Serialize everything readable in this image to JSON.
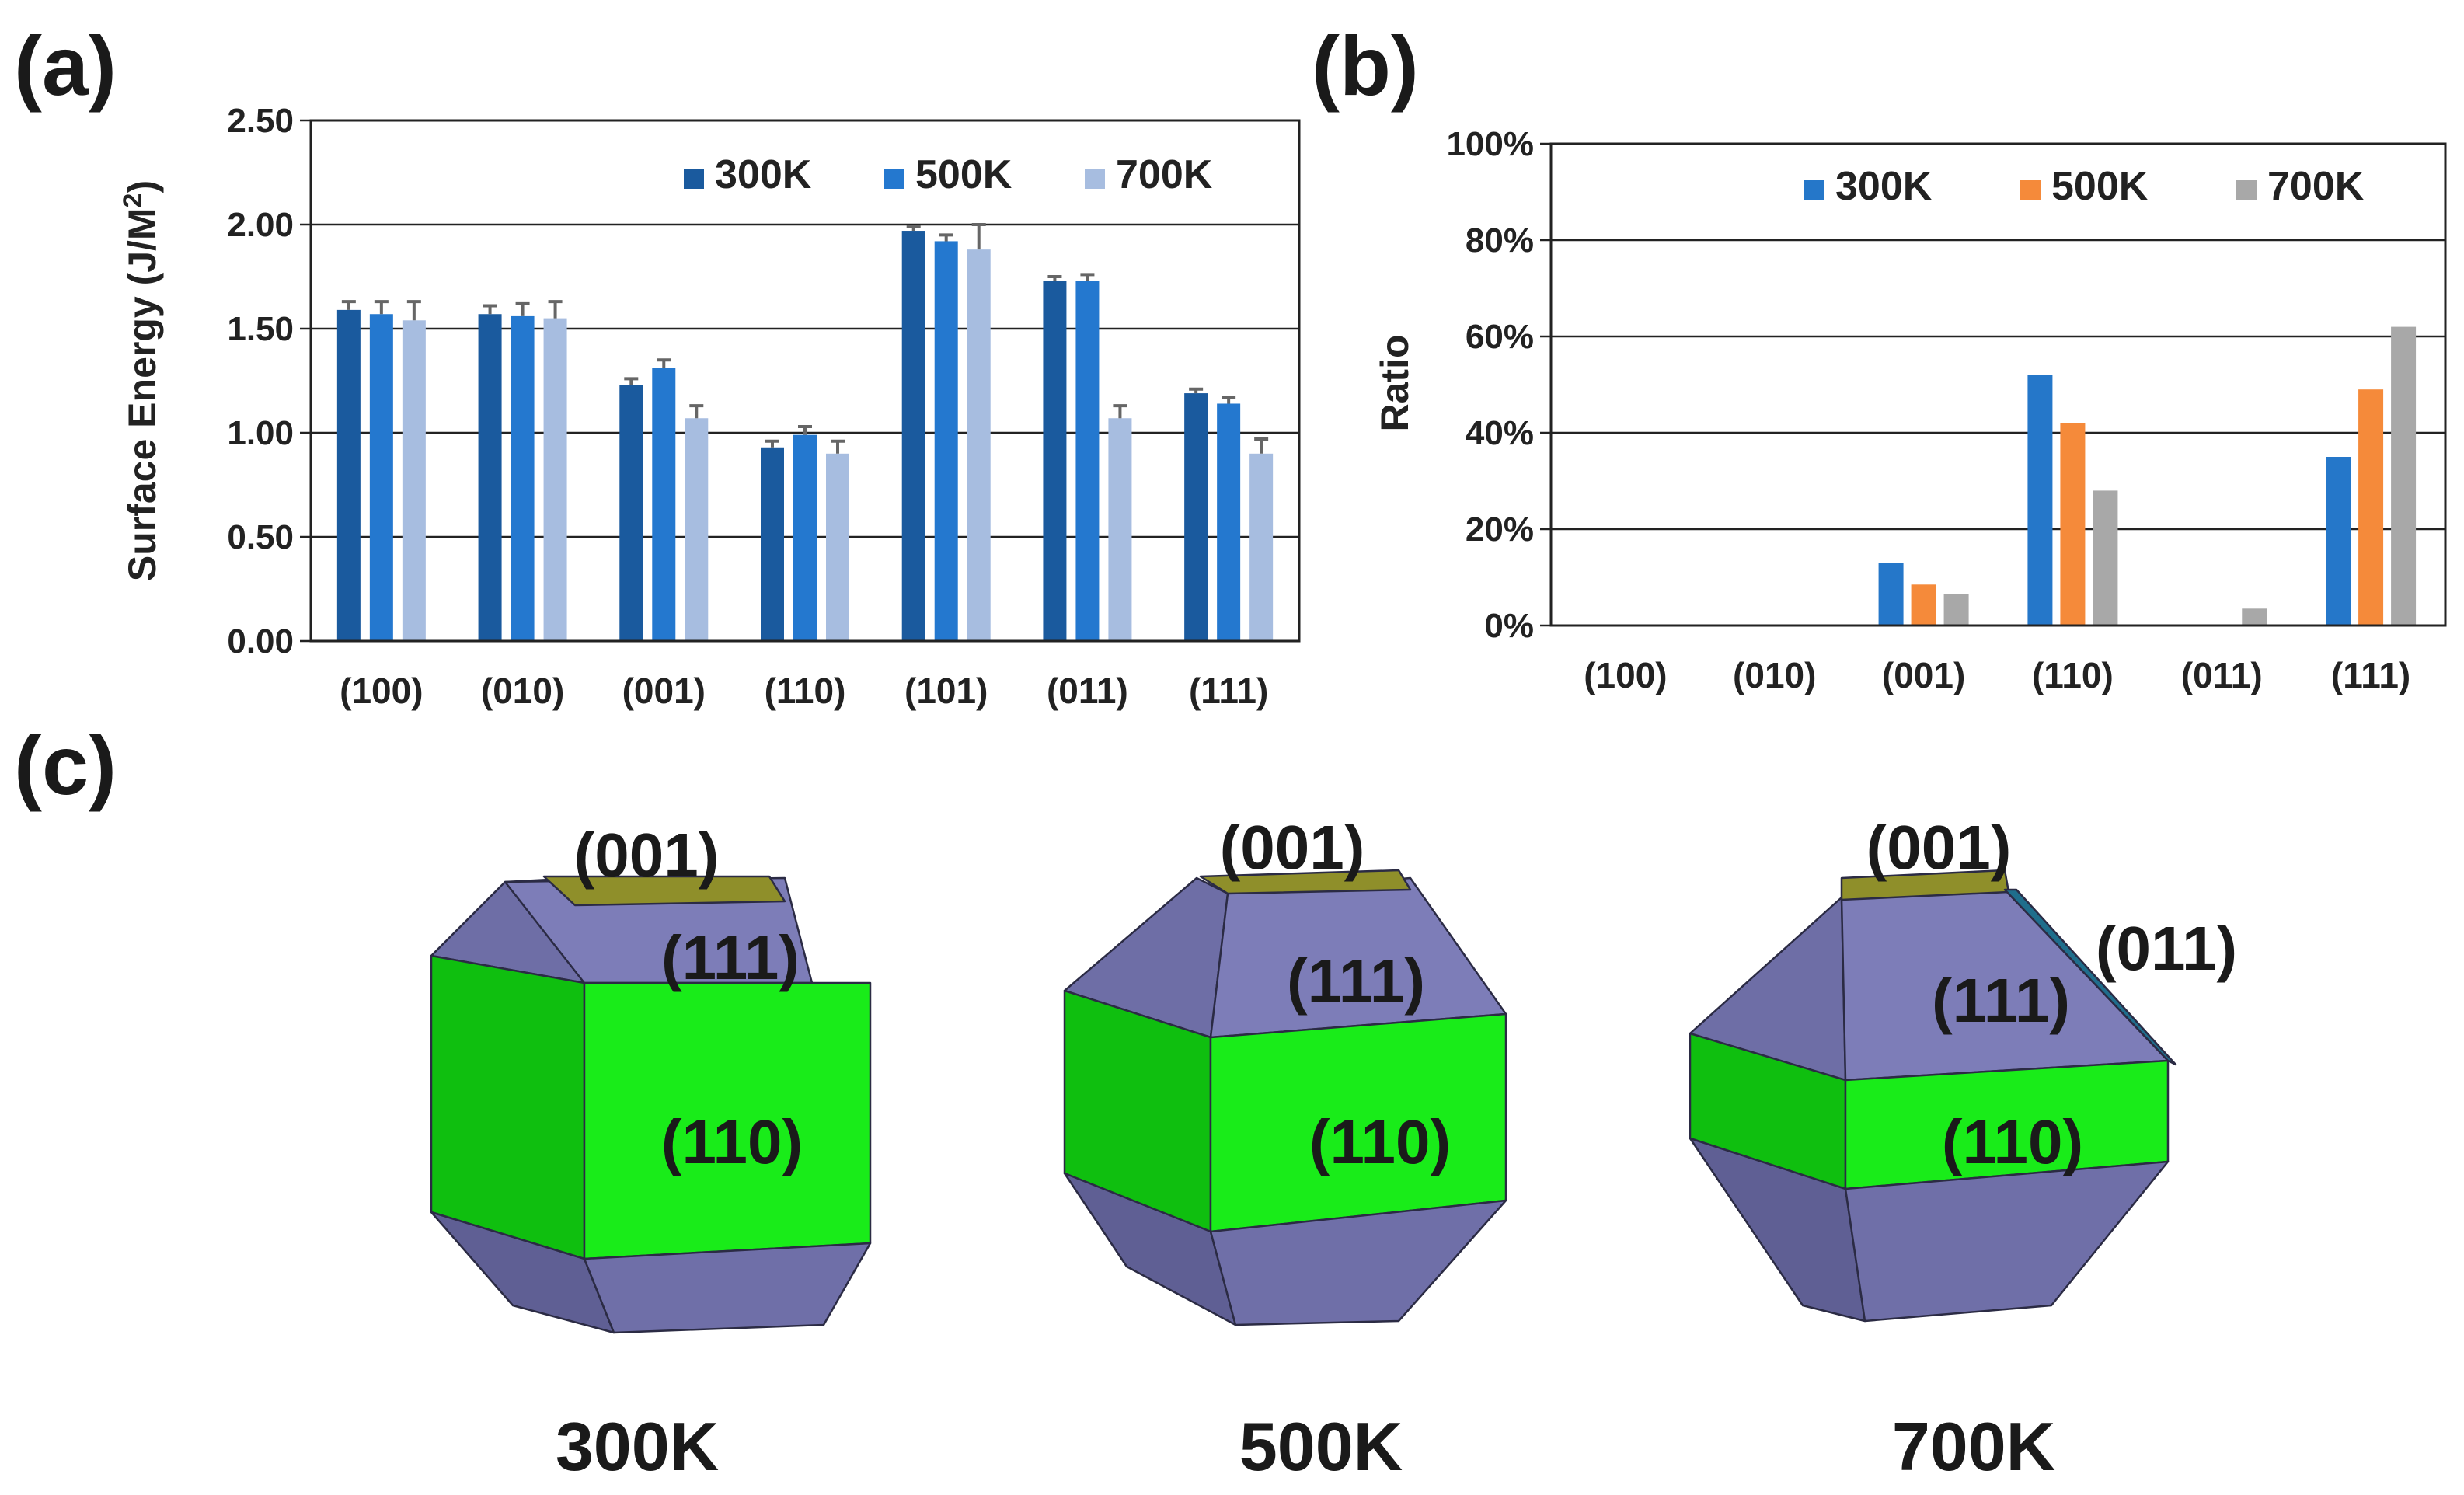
{
  "panel_labels": {
    "a": "(a)",
    "b": "(b)",
    "c": "(c)"
  },
  "chart_data": [
    {
      "type": "bar",
      "panel": "(a)",
      "title": "",
      "xlabel": "",
      "ylabel": "Surface Energy (J/M",
      "ylabel_sup": "2",
      "ylabel_close": ")",
      "ylim": [
        0,
        2.5
      ],
      "yticks": [
        "0.00",
        "0.50",
        "1.00",
        "1.50",
        "2.00",
        "2.50"
      ],
      "categories": [
        "(100)",
        "(010)",
        "(001)",
        "(110)",
        "(101)",
        "(011)",
        "(111)"
      ],
      "legend_position": "top-right",
      "series": [
        {
          "name": "300K",
          "color": "#1a5a9e",
          "values": [
            1.59,
            1.57,
            1.23,
            0.93,
            1.97,
            1.73,
            1.19
          ],
          "errors": [
            0.04,
            0.04,
            0.03,
            0.03,
            0.02,
            0.02,
            0.02
          ]
        },
        {
          "name": "500K",
          "color": "#2478cf",
          "values": [
            1.57,
            1.56,
            1.31,
            0.99,
            1.92,
            1.73,
            1.14
          ],
          "errors": [
            0.06,
            0.06,
            0.04,
            0.04,
            0.03,
            0.03,
            0.03
          ]
        },
        {
          "name": "700K",
          "color": "#a7bde0",
          "values": [
            1.54,
            1.55,
            1.07,
            0.9,
            1.88,
            1.07,
            0.9
          ],
          "errors": [
            0.09,
            0.08,
            0.06,
            0.06,
            0.12,
            0.06,
            0.07
          ]
        }
      ]
    },
    {
      "type": "bar",
      "panel": "(b)",
      "title": "",
      "xlabel": "",
      "ylabel": "Ratio",
      "ylim": [
        0,
        100
      ],
      "yticks": [
        "0%",
        "20%",
        "40%",
        "60%",
        "80%",
        "100%"
      ],
      "categories": [
        "(100)",
        "(010)",
        "(001)",
        "(110)",
        "(011)",
        "(111)"
      ],
      "legend_position": "top-right",
      "series": [
        {
          "name": "300K",
          "color": "#2577c9",
          "values": [
            0,
            0,
            13,
            52,
            0,
            35
          ]
        },
        {
          "name": "500K",
          "color": "#f58a3a",
          "values": [
            0,
            0,
            8.5,
            42,
            0,
            49
          ]
        },
        {
          "name": "700K",
          "color": "#a8a8a8",
          "values": [
            0,
            0,
            6.5,
            28,
            3.5,
            62
          ]
        }
      ]
    }
  ],
  "panel_c": {
    "shapes": [
      {
        "temperature": "300K",
        "facets": [
          "(001)",
          "(111)",
          "(110)"
        ]
      },
      {
        "temperature": "500K",
        "facets": [
          "(001)",
          "(111)",
          "(110)"
        ]
      },
      {
        "temperature": "700K",
        "facets": [
          "(001)",
          "(111)",
          "(110)",
          "(011)"
        ]
      }
    ],
    "colors": {
      "facet_001": "#8f8f2a",
      "facet_111": "#7b7bb4",
      "facet_111_dark": "#5f5f94",
      "facet_110": "#18e818",
      "facet_110_dark": "#0bb20b",
      "facet_011": "#1f6e8c"
    }
  }
}
